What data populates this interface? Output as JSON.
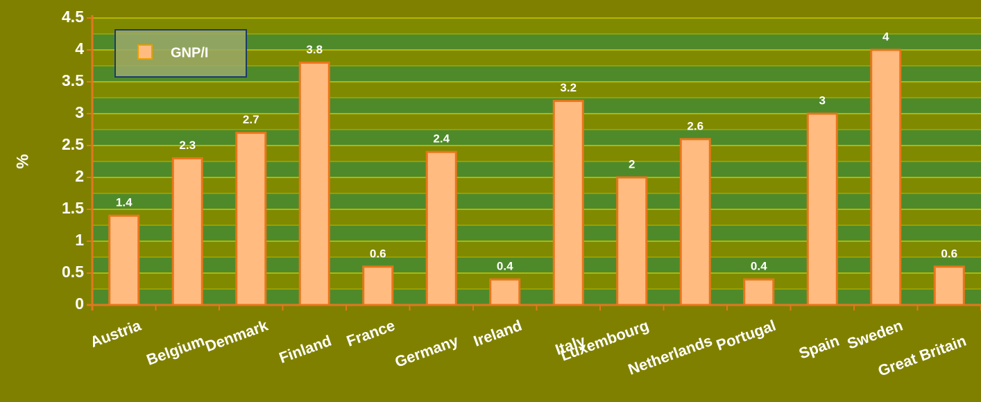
{
  "chart_data": {
    "type": "bar",
    "y_label": "%",
    "categories": [
      "Austria",
      "Belgium",
      "Denmark",
      "Finland",
      "France",
      "Germany",
      "Ireland",
      "Italy",
      "Luxembourg",
      "Netherlands",
      "Portugal",
      "Spain",
      "Sweden",
      "Great Britain"
    ],
    "series": [
      {
        "name": "GNP/I",
        "color": "#ffbb80",
        "values": [
          1.4,
          2.3,
          2.7,
          3.8,
          0.6,
          2.4,
          0.4,
          3.2,
          2,
          2.6,
          0.4,
          3,
          4,
          0.6
        ]
      }
    ],
    "ylim": [
      0,
      4.5
    ],
    "yticks": [
      0,
      0.5,
      1,
      1.5,
      2,
      2.5,
      3,
      3.5,
      4,
      4.5
    ],
    "grid": true,
    "legend": "upper left"
  }
}
